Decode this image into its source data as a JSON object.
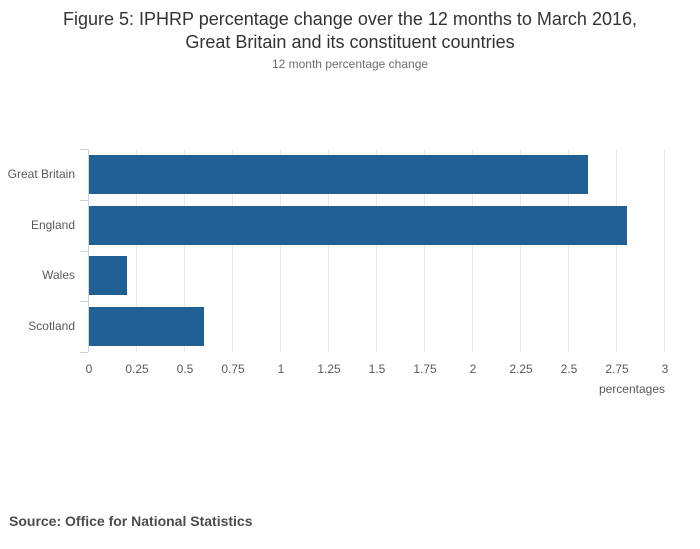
{
  "title": {
    "lines": [
      "Figure 5: IPHRP percentage change over the 12 months to March 2016,",
      "Great Britain and its constituent countries"
    ]
  },
  "subtitle": "12 month percentage change",
  "source": "Source: Office for National Statistics",
  "colors": {
    "bar": "#206095",
    "grid": "#e7e7e7",
    "axis": "#c9d4dd",
    "label": "#595959",
    "title": "#333333",
    "subtitle": "#6e6e6e",
    "source": "#4c4c4c"
  },
  "chart_data": {
    "type": "bar",
    "orientation": "horizontal",
    "title": "Figure 5: IPHRP percentage change over the 12 months to March 2016, Great Britain and its constituent countries",
    "subtitle": "12 month percentage change",
    "xlabel": "percentages",
    "ylabel": "",
    "categories": [
      "Great Britain",
      "England",
      "Wales",
      "Scotland"
    ],
    "values": [
      2.6,
      2.8,
      0.2,
      0.6
    ],
    "xlim": [
      0,
      3
    ],
    "xticks": [
      0,
      0.25,
      0.5,
      0.75,
      1,
      1.25,
      1.5,
      1.75,
      2,
      2.25,
      2.5,
      2.75,
      3
    ],
    "grid": true,
    "legend": false,
    "bar_color": "#206095"
  }
}
